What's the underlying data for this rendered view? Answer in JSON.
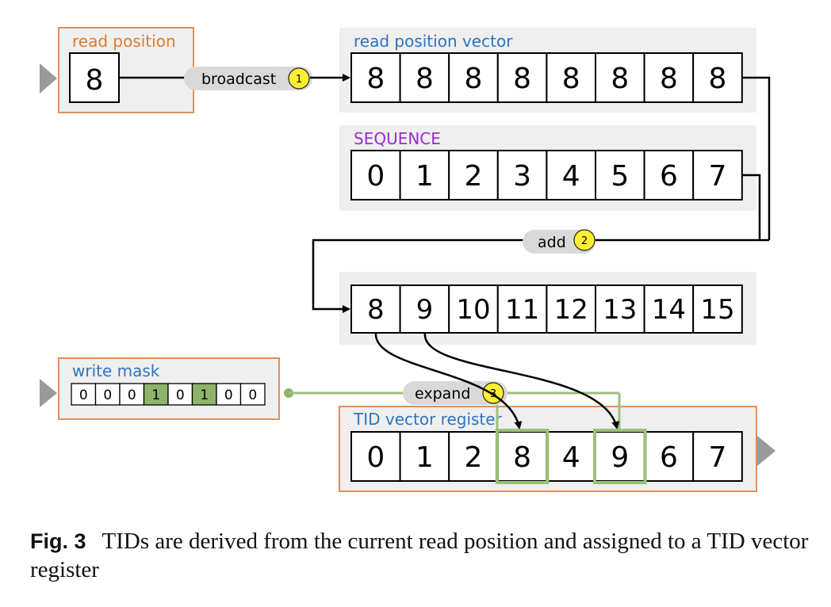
{
  "read_position": {
    "label": "read position",
    "value": "8"
  },
  "read_position_vector": {
    "label": "read position vector",
    "cells": [
      "8",
      "8",
      "8",
      "8",
      "8",
      "8",
      "8",
      "8"
    ]
  },
  "sequence": {
    "label": "SEQUENCE",
    "cells": [
      "0",
      "1",
      "2",
      "3",
      "4",
      "5",
      "6",
      "7"
    ]
  },
  "sum_vector": {
    "cells": [
      "8",
      "9",
      "10",
      "11",
      "12",
      "13",
      "14",
      "15"
    ]
  },
  "write_mask": {
    "label": "write mask",
    "bits": [
      "0",
      "0",
      "0",
      "1",
      "0",
      "1",
      "0",
      "0"
    ]
  },
  "tid_vector_register": {
    "label": "TID vector register",
    "cells": [
      "0",
      "1",
      "2",
      "8",
      "4",
      "9",
      "6",
      "7"
    ]
  },
  "steps": {
    "broadcast": {
      "label": "broadcast",
      "badge": "1"
    },
    "add": {
      "label": "add",
      "badge": "2"
    },
    "expand": {
      "label": "expand",
      "badge": "3"
    }
  },
  "colors": {
    "orange_border": "#e0905a",
    "orange_label": "#e07b2f",
    "blue_label": "#2e74c0",
    "purple_label": "#9b2bd6",
    "panel_gray": "#efefef",
    "mask_green": "#8fb36a",
    "highlight_green": "#9bc07a",
    "badge_yellow": "#ffee33"
  },
  "caption": {
    "fig_label": "Fig. 3",
    "text": "TIDs are derived from the current read position and assigned to a TID vector register"
  }
}
